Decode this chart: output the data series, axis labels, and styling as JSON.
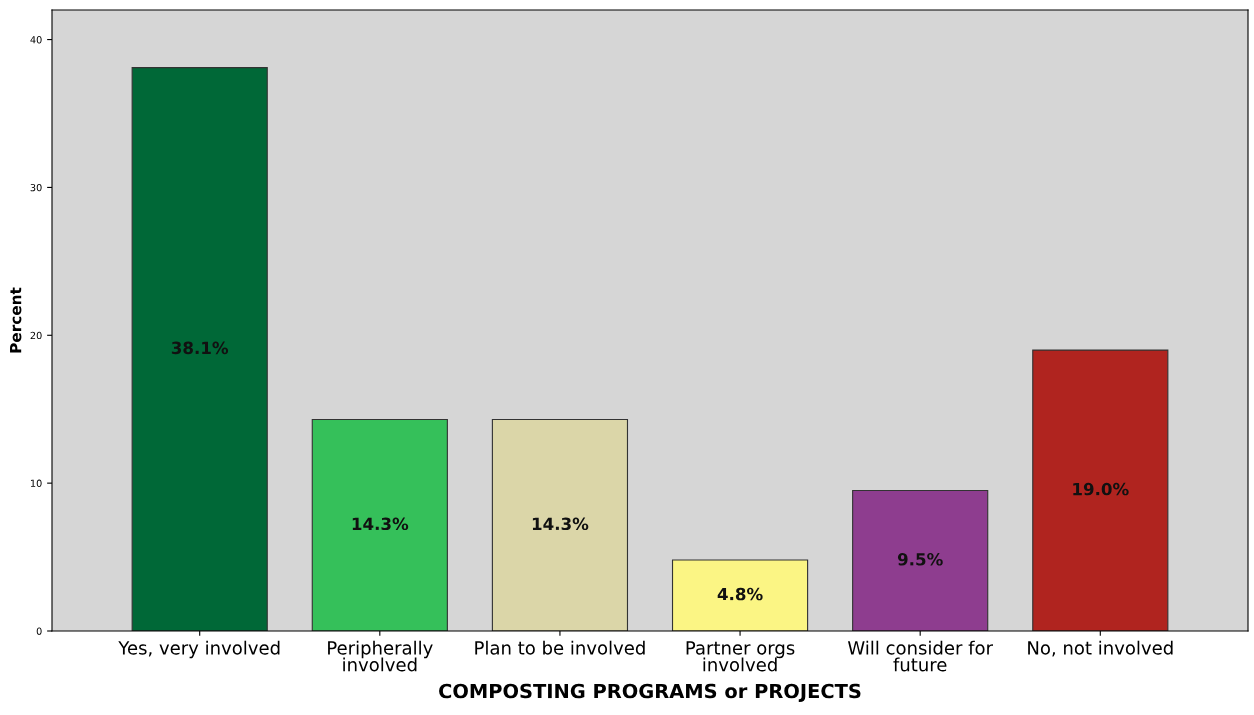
{
  "chart_data": {
    "type": "bar",
    "xlabel": "COMPOSTING PROGRAMS or PROJECTS",
    "ylabel": "Percent",
    "categories": [
      "Yes, very involved",
      "Peripherally\ninvolved",
      "Plan to be involved",
      "Partner orgs\ninvolved",
      "Will consider for\nfuture",
      "No, not involved"
    ],
    "values": [
      38.1,
      14.3,
      14.3,
      4.8,
      9.5,
      19.0
    ],
    "value_labels": [
      "38.1%",
      "14.3%",
      "14.3%",
      "4.8%",
      "9.5%",
      "19.0%"
    ],
    "colors": [
      "#006837",
      "#35c05a",
      "#dbd6a8",
      "#fbf584",
      "#8e3d8f",
      "#b0241f"
    ],
    "ylim": [
      0,
      42
    ],
    "yticks": [
      0,
      10,
      20,
      30,
      40
    ],
    "grid": false,
    "legend": false
  }
}
